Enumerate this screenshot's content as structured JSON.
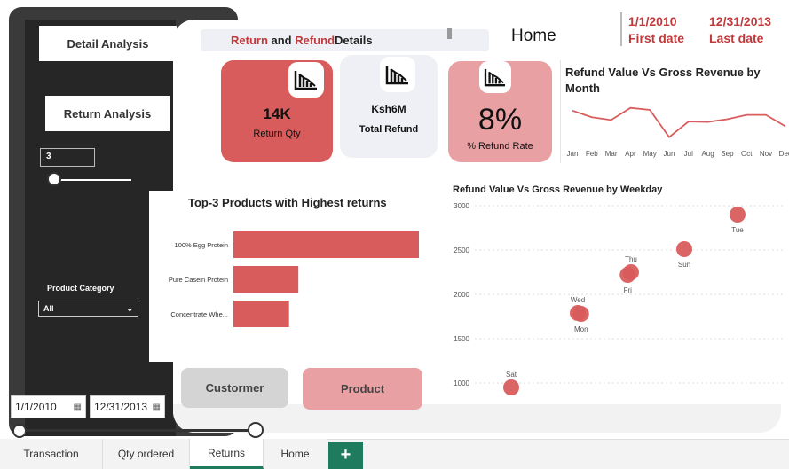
{
  "sidebar": {
    "detail_analysis_label": "Detail Analysis",
    "return_analysis_label": "Return Analysis",
    "top_n_value": "3",
    "product_category_label": "Product Category",
    "product_category_value": "All"
  },
  "date_range": {
    "start": "1/1/2010",
    "end": "12/31/2013",
    "first_date_label": "First date",
    "last_date_label": "Last date"
  },
  "header": {
    "title_part1": "Return",
    "title_part2": " and ",
    "title_part3": "Refund",
    "title_part4": " Details",
    "page_title": "Home"
  },
  "kpis": {
    "return_qty_value": "14K",
    "return_qty_label": "Return Qty",
    "total_refund_value": "Ksh6M",
    "total_refund_label": "Total Refund",
    "refund_rate_value": "8%",
    "refund_rate_label": "% Refund Rate"
  },
  "buttons": {
    "customer_label": "Custormer",
    "product_label": "Product"
  },
  "tabs": [
    {
      "label": "Transaction"
    },
    {
      "label": "Qty ordered"
    },
    {
      "label": "Returns"
    },
    {
      "label": "Home"
    }
  ],
  "colors": {
    "accent_red": "#d95c5c",
    "light_red": "#e8a0a3",
    "tab_green": "#1e7b5d"
  },
  "chart_data": [
    {
      "type": "line",
      "title": "Refund Value Vs Gross Revenue by Month",
      "categories": [
        "Jan",
        "Feb",
        "Mar",
        "Apr",
        "May",
        "Jun",
        "Jul",
        "Aug",
        "Sep",
        "Oct",
        "Nov",
        "Dec"
      ],
      "values": [
        8.0,
        6.3,
        5.6,
        8.7,
        8.2,
        1.2,
        5.2,
        5.1,
        5.8,
        6.9,
        6.9,
        4.0
      ]
    },
    {
      "type": "bar",
      "title": "Top-3 Products with Highest returns",
      "categories": [
        "100% Egg Protein",
        "Pure Casein Protein",
        "Concentrate Whe..."
      ],
      "values": [
        100,
        35,
        30
      ]
    },
    {
      "type": "scatter",
      "title": "Refund Value Vs Gross Revenue by Weekday",
      "yticks": [
        1000,
        1500,
        2000,
        2500,
        3000
      ],
      "ylim": [
        850,
        3050
      ],
      "points": [
        {
          "label": "Sat",
          "x": 1,
          "y": 950
        },
        {
          "label": "Wed",
          "x": 2,
          "y": 1790
        },
        {
          "label": "Mon",
          "x": 2.05,
          "y": 1780
        },
        {
          "label": "Fri",
          "x": 2.75,
          "y": 2220
        },
        {
          "label": "Thu",
          "x": 2.8,
          "y": 2250
        },
        {
          "label": "Sun",
          "x": 3.6,
          "y": 2510
        },
        {
          "label": "Tue",
          "x": 4.4,
          "y": 2900
        }
      ]
    }
  ]
}
